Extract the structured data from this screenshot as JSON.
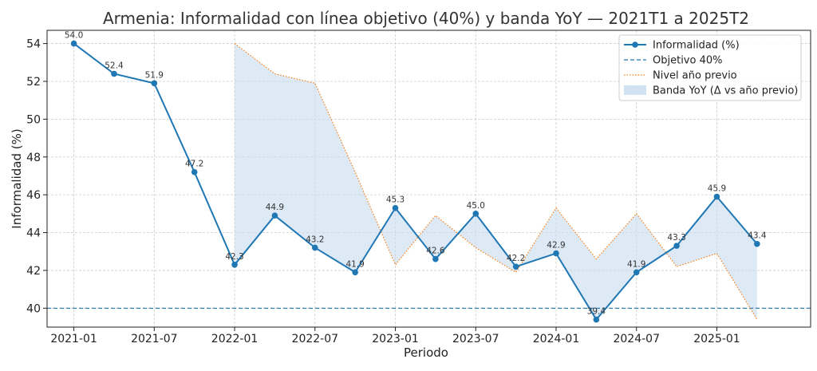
{
  "chart_data": {
    "type": "line",
    "title": "Armenia: Informalidad con línea objetivo (40%) y banda YoY — 2021T1 a 2025T2",
    "xlabel": "Periodo",
    "ylabel": "Informalidad (%)",
    "x_ticks": [
      "2021-01",
      "2021-07",
      "2022-01",
      "2022-07",
      "2023-01",
      "2023-07",
      "2024-01",
      "2024-07",
      "2025-01"
    ],
    "y_ticks": [
      40,
      42,
      44,
      46,
      48,
      50,
      52,
      54
    ],
    "ylim": [
      39.0,
      54.7
    ],
    "xlim": [
      "2020-11",
      "2025-08"
    ],
    "grid": true,
    "legend_position": "top-right",
    "x": [
      "2021-01",
      "2021-04",
      "2021-07",
      "2021-10",
      "2022-01",
      "2022-04",
      "2022-07",
      "2022-10",
      "2023-01",
      "2023-04",
      "2023-07",
      "2023-10",
      "2024-01",
      "2024-04",
      "2024-07",
      "2024-10",
      "2025-01",
      "2025-04"
    ],
    "series": [
      {
        "name": "Informalidad (%)",
        "color": "#1f77b4",
        "values": [
          54.0,
          52.4,
          51.9,
          47.2,
          42.3,
          44.9,
          43.2,
          41.9,
          45.3,
          42.6,
          45.0,
          42.2,
          42.9,
          39.4,
          41.9,
          43.3,
          45.9,
          43.4
        ],
        "labels": [
          "54.0",
          "52.4",
          "51.9",
          "47.2",
          "42.3",
          "44.9",
          "43.2",
          "41.9",
          "45.3",
          "42.6",
          "45.0",
          "42.2",
          "42.9",
          "39.4",
          "41.9",
          "43.3",
          "45.9",
          "43.4"
        ]
      },
      {
        "name": "Objetivo 40%",
        "color": "#1f77b4",
        "style": "dashed",
        "value": 40
      },
      {
        "name": "Nivel año previo",
        "color": "#ff7f0e",
        "style": "dotted",
        "x": [
          "2022-01",
          "2022-04",
          "2022-07",
          "2022-10",
          "2023-01",
          "2023-04",
          "2023-07",
          "2023-10",
          "2024-01",
          "2024-04",
          "2024-07",
          "2024-10",
          "2025-01",
          "2025-04"
        ],
        "values": [
          54.0,
          52.4,
          51.9,
          47.2,
          42.3,
          44.9,
          43.2,
          41.9,
          45.3,
          42.6,
          45.0,
          42.2,
          42.9,
          39.4
        ]
      },
      {
        "name": "Banda YoY (Δ vs año previo)",
        "color": "#c6dbef",
        "type": "area-between"
      }
    ]
  }
}
